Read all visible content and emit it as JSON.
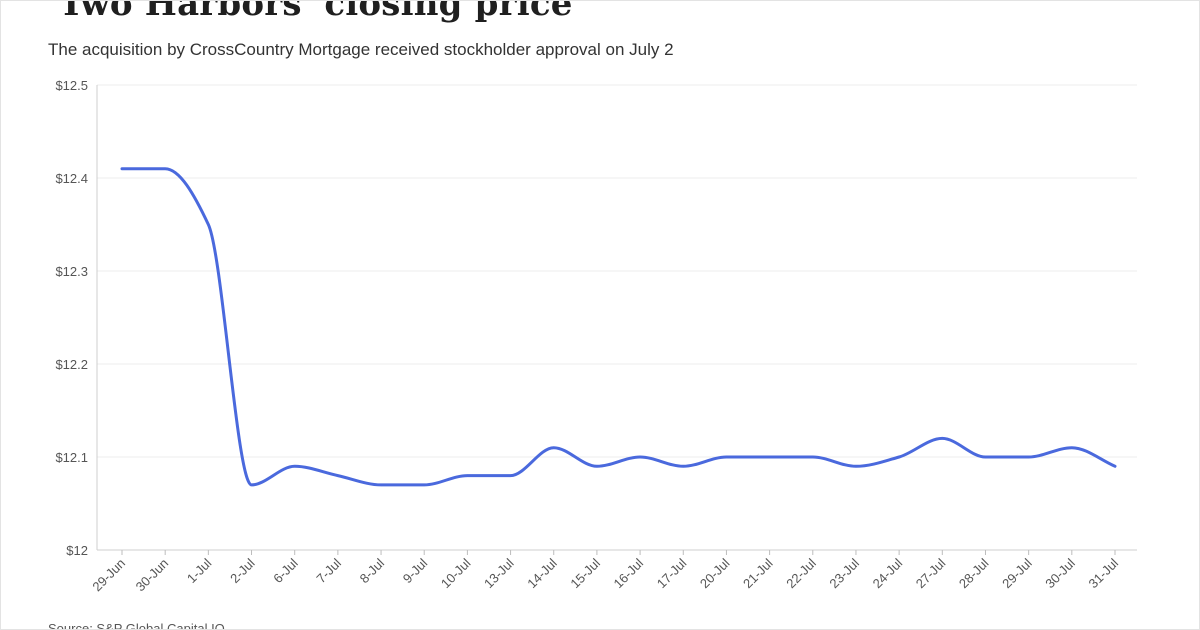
{
  "header": {
    "title": "'Two Harbors' closing price",
    "subtitle": "The acquisition by CrossCountry Mortgage received stockholder approval on July 2"
  },
  "footer": {
    "source": "Source: S&P Global Capital IQ"
  },
  "colors": {
    "line": "#4a69dd",
    "grid": "#ececec"
  },
  "chart_data": {
    "type": "line",
    "title": "'Two Harbors' closing price",
    "subtitle": "The acquisition by CrossCountry Mortgage received stockholder approval on July 2",
    "xlabel": "",
    "ylabel": "",
    "grid": true,
    "legend": "none",
    "ylim": [
      12,
      12.5
    ],
    "y_ticks": [
      12,
      12.1,
      12.2,
      12.3,
      12.4,
      12.5
    ],
    "y_tick_labels": [
      "$12",
      "$12.1",
      "$12.2",
      "$12.3",
      "$12.4",
      "$12.5"
    ],
    "categories": [
      "29-Jun",
      "30-Jun",
      "1-Jul",
      "2-Jul",
      "6-Jul",
      "7-Jul",
      "8-Jul",
      "9-Jul",
      "10-Jul",
      "13-Jul",
      "14-Jul",
      "15-Jul",
      "16-Jul",
      "17-Jul",
      "20-Jul",
      "21-Jul",
      "22-Jul",
      "23-Jul",
      "24-Jul",
      "27-Jul",
      "28-Jul",
      "29-Jul",
      "30-Jul",
      "31-Jul"
    ],
    "series": [
      {
        "values": [
          12.41,
          12.41,
          12.35,
          12.07,
          12.09,
          12.08,
          12.07,
          12.07,
          12.08,
          12.08,
          12.11,
          12.09,
          12.1,
          12.09,
          12.1,
          12.1,
          12.1,
          12.09,
          12.1,
          12.12,
          12.1,
          12.1,
          12.11,
          12.09
        ]
      }
    ]
  }
}
